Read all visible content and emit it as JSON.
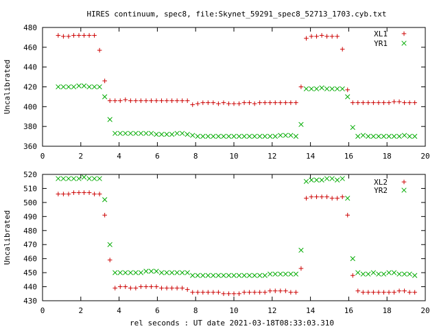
{
  "title": "HIRES continuum, spec8, file:Skynet_59291_spec8_52713_1703.cyb.txt",
  "xlabel": "rel seconds : UT date 2021-03-18T08:33:03.310",
  "colors": {
    "xl": "#cc0000",
    "yr": "#00aa00",
    "axis": "#000000"
  },
  "chart_data": [
    {
      "type": "scatter",
      "title": "HIRES continuum, spec8, file:Skynet_59291_spec8_52713_1703.cyb.txt",
      "xlabel": "",
      "ylabel": "Uncalibrated",
      "xlim": [
        0,
        20
      ],
      "ylim": [
        360,
        480
      ],
      "xticks": [
        0,
        2,
        4,
        6,
        8,
        10,
        12,
        14,
        16,
        18,
        20
      ],
      "yticks": [
        360,
        380,
        400,
        420,
        440,
        460,
        480
      ],
      "grid": false,
      "legend": "top-right",
      "series": [
        {
          "name": "XL1",
          "marker": "plus",
          "color": "#cc0000",
          "x": [
            0.82,
            1.09,
            1.36,
            1.63,
            1.9,
            2.17,
            2.44,
            2.71,
            2.98,
            3.25,
            3.52,
            3.79,
            4.06,
            4.33,
            4.6,
            4.87,
            5.14,
            5.41,
            5.68,
            5.95,
            6.22,
            6.49,
            6.76,
            7.03,
            7.3,
            7.57,
            7.84,
            8.11,
            8.38,
            8.65,
            8.92,
            9.19,
            9.46,
            9.73,
            10.0,
            10.27,
            10.54,
            10.81,
            11.08,
            11.35,
            11.62,
            11.89,
            12.16,
            12.43,
            12.7,
            12.97,
            13.24,
            13.51,
            13.78,
            14.05,
            14.32,
            14.59,
            14.86,
            15.13,
            15.4,
            15.67,
            15.94,
            16.21,
            16.48,
            16.75,
            17.02,
            17.29,
            17.56,
            17.83,
            18.1,
            18.37,
            18.64,
            18.91,
            19.18,
            19.45
          ],
          "y": [
            472,
            471,
            471,
            472,
            472,
            472,
            472,
            472,
            457,
            426,
            406,
            406,
            406,
            407,
            406,
            406,
            406,
            406,
            406,
            406,
            406,
            406,
            406,
            406,
            406,
            406,
            402,
            403,
            404,
            404,
            404,
            403,
            404,
            403,
            403,
            403,
            404,
            404,
            403,
            404,
            404,
            404,
            404,
            404,
            404,
            404,
            404,
            420,
            469,
            471,
            471,
            472,
            471,
            471,
            471,
            458,
            417,
            404,
            404,
            404,
            404,
            404,
            404,
            404,
            404,
            405,
            405,
            404,
            404,
            404
          ]
        },
        {
          "name": "YR1",
          "marker": "cross",
          "color": "#00aa00",
          "x": [
            0.82,
            1.09,
            1.36,
            1.63,
            1.9,
            2.17,
            2.44,
            2.71,
            2.98,
            3.25,
            3.52,
            3.79,
            4.06,
            4.33,
            4.6,
            4.87,
            5.14,
            5.41,
            5.68,
            5.95,
            6.22,
            6.49,
            6.76,
            7.03,
            7.3,
            7.57,
            7.84,
            8.11,
            8.38,
            8.65,
            8.92,
            9.19,
            9.46,
            9.73,
            10.0,
            10.27,
            10.54,
            10.81,
            11.08,
            11.35,
            11.62,
            11.89,
            12.16,
            12.43,
            12.7,
            12.97,
            13.24,
            13.51,
            13.78,
            14.05,
            14.32,
            14.59,
            14.86,
            15.13,
            15.4,
            15.67,
            15.94,
            16.21,
            16.48,
            16.75,
            17.02,
            17.29,
            17.56,
            17.83,
            18.1,
            18.37,
            18.64,
            18.91,
            19.18,
            19.45
          ],
          "y": [
            420,
            420,
            420,
            420,
            421,
            421,
            420,
            420,
            420,
            410,
            387,
            373,
            373,
            373,
            373,
            373,
            373,
            373,
            373,
            372,
            372,
            372,
            372,
            373,
            373,
            372,
            371,
            370,
            370,
            370,
            370,
            370,
            370,
            370,
            370,
            370,
            370,
            370,
            370,
            370,
            370,
            370,
            370,
            371,
            371,
            371,
            370,
            382,
            418,
            418,
            418,
            419,
            418,
            418,
            418,
            418,
            410,
            379,
            370,
            371,
            370,
            370,
            370,
            370,
            370,
            370,
            370,
            371,
            370,
            370
          ]
        }
      ]
    },
    {
      "type": "scatter",
      "title": "",
      "xlabel": "rel seconds : UT date 2021-03-18T08:33:03.310",
      "ylabel": "Uncalibrated",
      "xlim": [
        0,
        20
      ],
      "ylim": [
        430,
        520
      ],
      "xticks": [
        0,
        2,
        4,
        6,
        8,
        10,
        12,
        14,
        16,
        18,
        20
      ],
      "yticks": [
        430,
        440,
        450,
        460,
        470,
        480,
        490,
        500,
        510,
        520
      ],
      "grid": false,
      "legend": "top-right",
      "series": [
        {
          "name": "XL2",
          "marker": "plus",
          "color": "#cc0000",
          "x": [
            0.82,
            1.09,
            1.36,
            1.63,
            1.9,
            2.17,
            2.44,
            2.71,
            2.98,
            3.25,
            3.52,
            3.79,
            4.06,
            4.33,
            4.6,
            4.87,
            5.14,
            5.41,
            5.68,
            5.95,
            6.22,
            6.49,
            6.76,
            7.03,
            7.3,
            7.57,
            7.84,
            8.11,
            8.38,
            8.65,
            8.92,
            9.19,
            9.46,
            9.73,
            10.0,
            10.27,
            10.54,
            10.81,
            11.08,
            11.35,
            11.62,
            11.89,
            12.16,
            12.43,
            12.7,
            12.97,
            13.24,
            13.51,
            13.78,
            14.05,
            14.32,
            14.59,
            14.86,
            15.13,
            15.4,
            15.67,
            15.94,
            16.21,
            16.48,
            16.75,
            17.02,
            17.29,
            17.56,
            17.83,
            18.1,
            18.37,
            18.64,
            18.91,
            19.18,
            19.45
          ],
          "y": [
            506,
            506,
            506,
            507,
            507,
            507,
            507,
            506,
            506,
            491,
            459,
            439,
            440,
            440,
            439,
            439,
            440,
            440,
            440,
            440,
            439,
            439,
            439,
            439,
            439,
            438,
            436,
            436,
            436,
            436,
            436,
            436,
            435,
            435,
            435,
            435,
            436,
            436,
            436,
            436,
            436,
            437,
            437,
            437,
            437,
            436,
            436,
            453,
            503,
            504,
            504,
            504,
            504,
            503,
            503,
            504,
            491,
            448,
            437,
            436,
            436,
            436,
            436,
            436,
            436,
            436,
            437,
            437,
            436,
            436
          ]
        },
        {
          "name": "YR2",
          "marker": "cross",
          "color": "#00aa00",
          "x": [
            0.82,
            1.09,
            1.36,
            1.63,
            1.9,
            2.17,
            2.44,
            2.71,
            2.98,
            3.25,
            3.52,
            3.79,
            4.06,
            4.33,
            4.6,
            4.87,
            5.14,
            5.41,
            5.68,
            5.95,
            6.22,
            6.49,
            6.76,
            7.03,
            7.3,
            7.57,
            7.84,
            8.11,
            8.38,
            8.65,
            8.92,
            9.19,
            9.46,
            9.73,
            10.0,
            10.27,
            10.54,
            10.81,
            11.08,
            11.35,
            11.62,
            11.89,
            12.16,
            12.43,
            12.7,
            12.97,
            13.24,
            13.51,
            13.78,
            14.05,
            14.32,
            14.59,
            14.86,
            15.13,
            15.4,
            15.67,
            15.94,
            16.21,
            16.48,
            16.75,
            17.02,
            17.29,
            17.56,
            17.83,
            18.1,
            18.37,
            18.64,
            18.91,
            19.18,
            19.45
          ],
          "y": [
            517,
            517,
            517,
            517,
            517,
            518,
            517,
            517,
            517,
            502,
            470,
            450,
            450,
            450,
            450,
            450,
            450,
            451,
            451,
            451,
            450,
            450,
            450,
            450,
            450,
            450,
            448,
            448,
            448,
            448,
            448,
            448,
            448,
            448,
            448,
            448,
            448,
            448,
            448,
            448,
            448,
            449,
            449,
            449,
            449,
            449,
            449,
            466,
            515,
            516,
            516,
            516,
            517,
            517,
            516,
            517,
            503,
            460,
            450,
            449,
            449,
            450,
            449,
            449,
            450,
            450,
            449,
            449,
            449,
            448
          ]
        }
      ]
    }
  ]
}
